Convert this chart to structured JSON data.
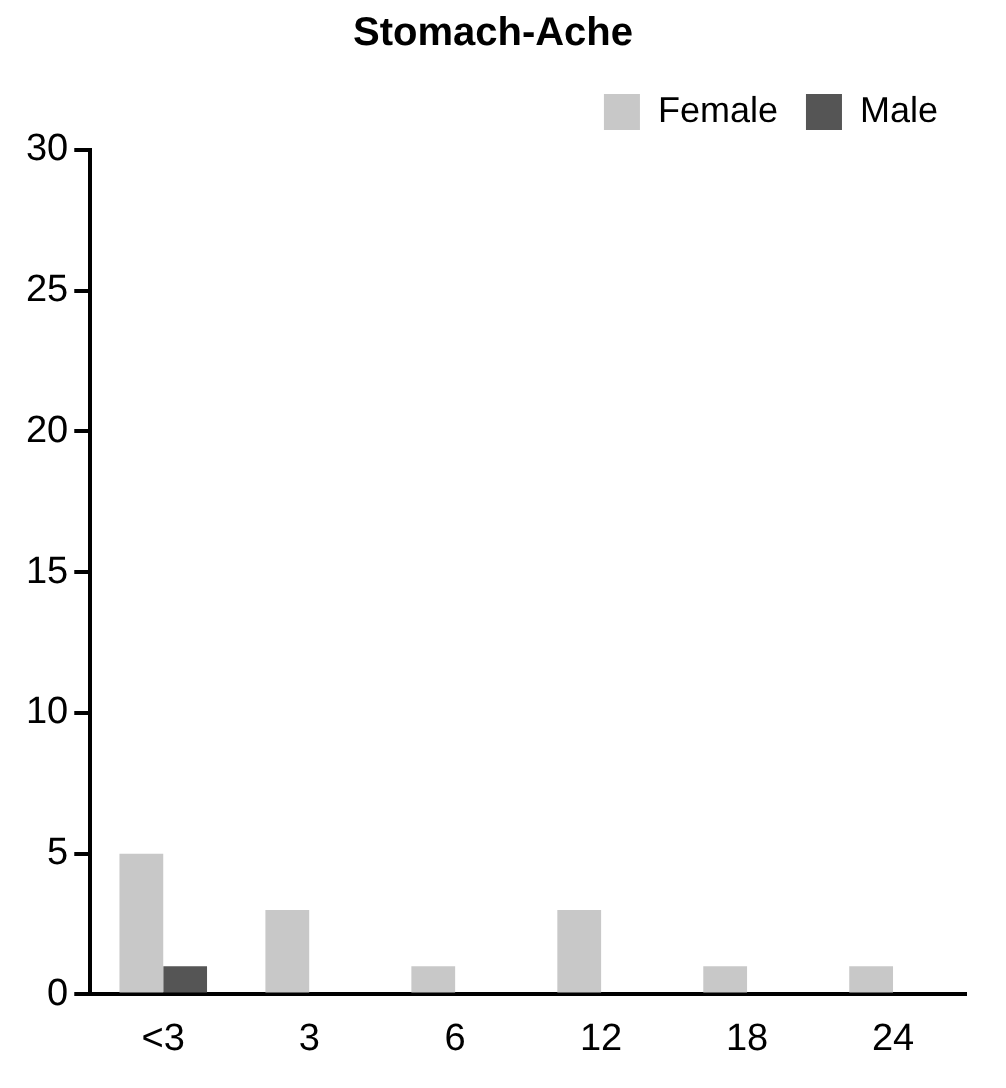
{
  "chart_data": {
    "type": "bar",
    "title": "Stomach-Ache",
    "categories": [
      "<3",
      "3",
      "6",
      "12",
      "18",
      "24"
    ],
    "series": [
      {
        "name": "Female",
        "color": "#c8c8c8",
        "values": [
          5,
          3,
          1,
          3,
          1,
          1
        ]
      },
      {
        "name": "Male",
        "color": "#555555",
        "values": [
          1,
          0,
          0,
          0,
          0,
          0
        ]
      }
    ],
    "ylim": [
      0,
      30
    ],
    "yticks": [
      0,
      5,
      10,
      15,
      20,
      25,
      30
    ],
    "grid": false,
    "legend": "top right"
  }
}
